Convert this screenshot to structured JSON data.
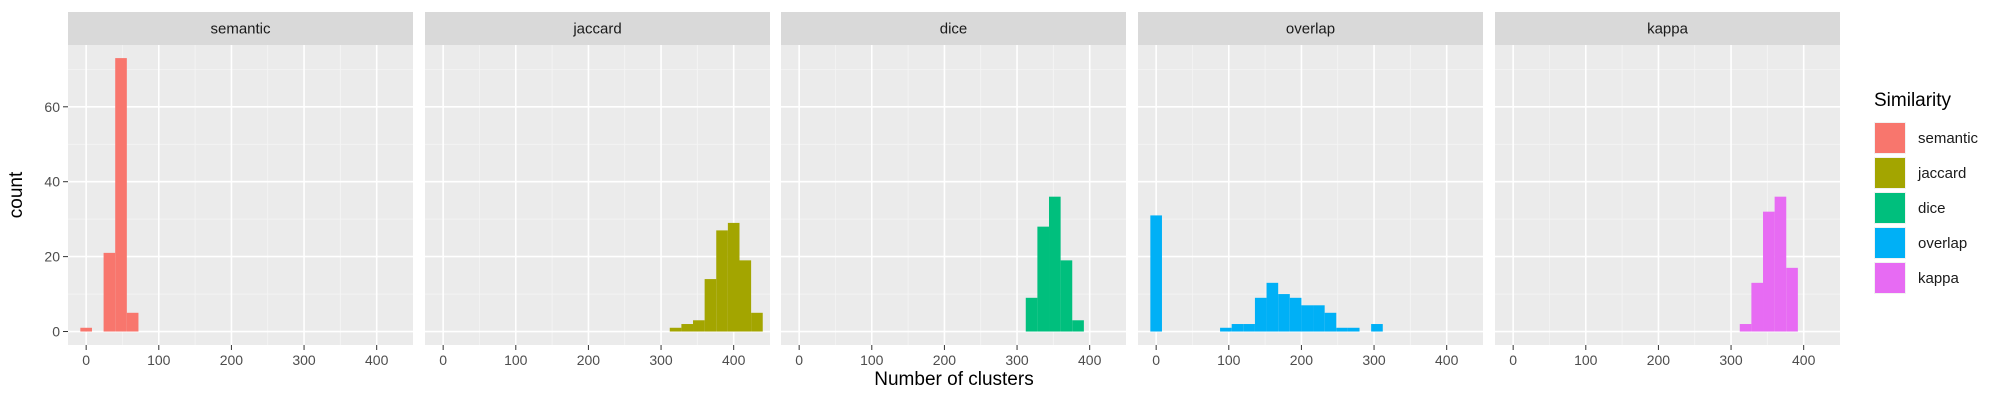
{
  "chart_data": {
    "type": "bar",
    "subtype": "faceted-histogram",
    "xlabel": "Number of clusters",
    "ylabel": "count",
    "xlim": [
      -25,
      450
    ],
    "ylim": [
      -3.6,
      76.5
    ],
    "x_ticks": [
      0,
      100,
      200,
      300,
      400
    ],
    "y_ticks": [
      0,
      20,
      40,
      60
    ],
    "bin_width": 16,
    "grid": true,
    "legend": {
      "title": "Similarity",
      "placement": "right",
      "entries": [
        "semantic",
        "jaccard",
        "dice",
        "overlap",
        "kappa"
      ]
    },
    "panels": [
      {
        "label": "semantic",
        "color": "#F8766D",
        "bins": [
          [
            0,
            1
          ],
          [
            32,
            21
          ],
          [
            48,
            73
          ],
          [
            64,
            5
          ]
        ]
      },
      {
        "label": "jaccard",
        "color": "#A3A500",
        "bins": [
          [
            320,
            1
          ],
          [
            336,
            2
          ],
          [
            352,
            3
          ],
          [
            368,
            14
          ],
          [
            384,
            27
          ],
          [
            400,
            29
          ],
          [
            416,
            19
          ],
          [
            432,
            5
          ]
        ]
      },
      {
        "label": "dice",
        "color": "#00BF7D",
        "bins": [
          [
            320,
            9
          ],
          [
            336,
            28
          ],
          [
            352,
            36
          ],
          [
            368,
            19
          ],
          [
            384,
            3
          ]
        ]
      },
      {
        "label": "overlap",
        "color": "#00B0F6",
        "bins": [
          [
            0,
            31
          ],
          [
            96,
            1
          ],
          [
            112,
            2
          ],
          [
            128,
            2
          ],
          [
            144,
            9
          ],
          [
            160,
            13
          ],
          [
            176,
            10
          ],
          [
            192,
            9
          ],
          [
            208,
            7
          ],
          [
            224,
            7
          ],
          [
            240,
            5
          ],
          [
            256,
            1
          ],
          [
            272,
            1
          ],
          [
            288,
            0
          ],
          [
            304,
            2
          ]
        ]
      },
      {
        "label": "kappa",
        "color": "#E76BF3",
        "bins": [
          [
            320,
            2
          ],
          [
            336,
            13
          ],
          [
            352,
            32
          ],
          [
            368,
            36
          ],
          [
            384,
            17
          ]
        ]
      }
    ]
  }
}
